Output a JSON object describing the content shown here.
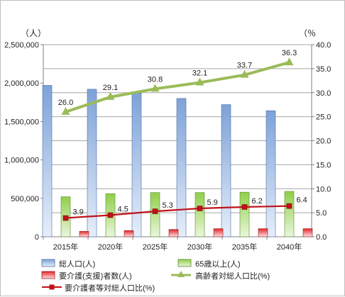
{
  "chart_data": {
    "type": "bar",
    "categories": [
      "2015年",
      "2020年",
      "2025年",
      "2030年",
      "2035年",
      "2040年"
    ],
    "y_left": {
      "unit_label": "（人）",
      "range": [
        0,
        2500000
      ],
      "ticks": [
        "0",
        "500,000",
        "1,000,000",
        "1,500,000",
        "2,000,000",
        "2,500,000"
      ]
    },
    "y_right": {
      "unit_label": "（％",
      "range": [
        0,
        40
      ],
      "ticks": [
        "0.0",
        "5.0",
        "10.0",
        "15.0",
        "20.0",
        "25.0",
        "30.0",
        "35.0",
        "40.0"
      ]
    },
    "grid": true,
    "series": [
      {
        "name": "総人口(人)",
        "kind": "bar",
        "axis": "left",
        "color": "#8fb0e0",
        "values": [
          1970000,
          1920000,
          1870000,
          1800000,
          1720000,
          1640000
        ]
      },
      {
        "name": "65歳以上(人)",
        "kind": "bar",
        "axis": "left",
        "color": "#92d050",
        "values": [
          520000,
          560000,
          575000,
          575000,
          580000,
          590000
        ]
      },
      {
        "name": "要介護(支援)者数(人)",
        "kind": "bar",
        "axis": "left",
        "color": "#e0393e",
        "values": [
          70000,
          80000,
          95000,
          105000,
          105000,
          105000
        ]
      },
      {
        "name": "高齢者対総人口比(%)",
        "kind": "line",
        "axis": "right",
        "color": "#9bbb59",
        "values": [
          26.0,
          29.1,
          30.8,
          32.1,
          33.7,
          36.3
        ],
        "labels": [
          "26.0",
          "29.1",
          "30.8",
          "32.1",
          "33.7",
          "36.3"
        ]
      },
      {
        "name": "要介護者等対総人口比(%)",
        "kind": "line",
        "axis": "right",
        "color": "#c0121a",
        "values": [
          3.9,
          4.5,
          5.3,
          5.9,
          6.2,
          6.4
        ],
        "labels": [
          "3.9",
          "4.5",
          "5.3",
          "5.9",
          "6.2",
          "6.4"
        ]
      }
    ],
    "legend": {
      "placement": "bottom",
      "items": [
        "総人口(人)",
        "65歳以上(人)",
        "要介護(支援)者数(人)",
        "高齢者対総人口比(%)",
        "要介護者等対総人口比(%)"
      ]
    }
  }
}
